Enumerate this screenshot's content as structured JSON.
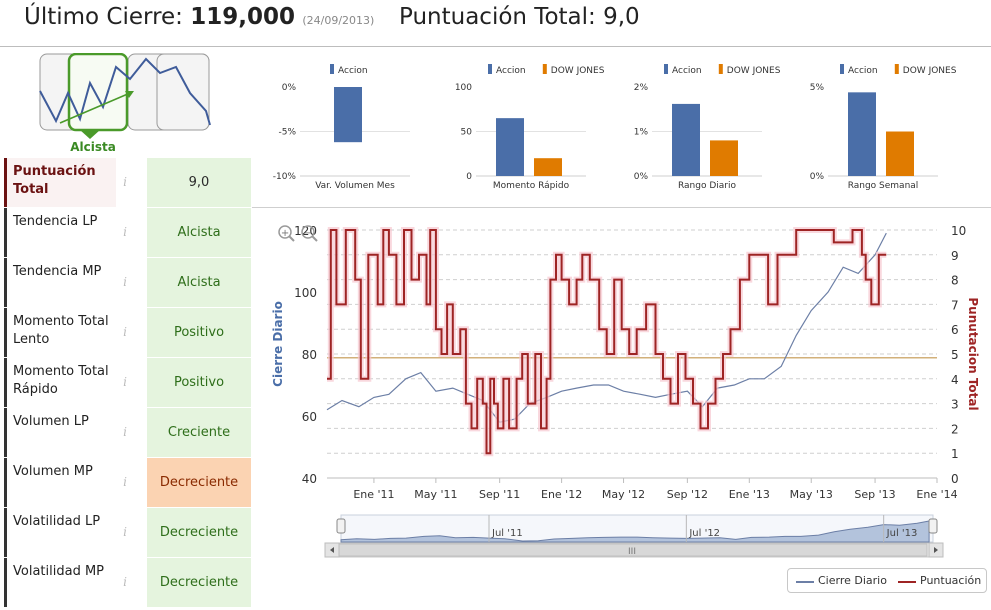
{
  "header": {
    "last_close_label": "Último Cierre:",
    "last_close_value": "119,000",
    "last_close_date": "(24/09/2013)",
    "total_score_label": "Puntuación Total:",
    "total_score_value": "9,0"
  },
  "trend": {
    "label": "Alcista",
    "icon": "trend-up-selector"
  },
  "indicators": [
    {
      "name": "Puntuación Total",
      "value": "9,0"
    },
    {
      "name": "Tendencia LP",
      "value": "Alcista"
    },
    {
      "name": "Tendencia MP",
      "value": "Alcista"
    },
    {
      "name": "Momento Total Lento",
      "value": "Positivo"
    },
    {
      "name": "Momento Total Rápido",
      "value": "Positivo"
    },
    {
      "name": "Volumen LP",
      "value": "Creciente"
    },
    {
      "name": "Volumen MP",
      "value": "Decreciente"
    },
    {
      "name": "Volatilidad LP",
      "value": "Decreciente"
    },
    {
      "name": "Volatilidad MP",
      "value": "Decreciente"
    }
  ],
  "info_glyph": "i",
  "colors": {
    "accion": "#4a6ea8",
    "dow_jones": "#e07b00",
    "cierre_line": "#6c7fa6",
    "puntuacion_line": "#9e2424",
    "average_line": "#d2b07a",
    "positive_bg": "#e5f4de",
    "negative_bg": "#fbd3b2",
    "trend_green": "#3a8a23"
  },
  "chart_data": [
    {
      "type": "bar",
      "xlabel": "Var. Volumen Mes",
      "legend": [
        "Accion"
      ],
      "yticks": [
        "0%",
        "-5%",
        "-10%"
      ],
      "ylim": [
        -10,
        0
      ],
      "series": [
        {
          "name": "Accion",
          "values": [
            -6.2
          ]
        }
      ]
    },
    {
      "type": "bar",
      "xlabel": "Momento Rápido",
      "legend": [
        "Accion",
        "DOW JONES"
      ],
      "yticks": [
        "100",
        "50",
        "0"
      ],
      "ylim": [
        0,
        100
      ],
      "series": [
        {
          "name": "Accion",
          "values": [
            65
          ]
        },
        {
          "name": "DOW JONES",
          "values": [
            20
          ]
        }
      ]
    },
    {
      "type": "bar",
      "xlabel": "Rango Diario",
      "legend": [
        "Accion",
        "DOW JONES"
      ],
      "yticks": [
        "2%",
        "1%",
        "0%"
      ],
      "ylim": [
        0,
        2
      ],
      "series": [
        {
          "name": "Accion",
          "values": [
            1.62
          ]
        },
        {
          "name": "DOW JONES",
          "values": [
            0.8
          ]
        }
      ]
    },
    {
      "type": "bar",
      "xlabel": "Rango Semanal",
      "legend": [
        "Accion",
        "DOW JONES"
      ],
      "yticks": [
        "5%",
        "0%"
      ],
      "ylim": [
        0,
        5
      ],
      "series": [
        {
          "name": "Accion",
          "values": [
            4.7
          ]
        },
        {
          "name": "DOW JONES",
          "values": [
            2.5
          ]
        }
      ]
    },
    {
      "type": "line",
      "ylabel": "Cierre Diario",
      "y2label": "Punutacion Total",
      "ylim": [
        40,
        120
      ],
      "y2lim": [
        0,
        10
      ],
      "yticks": [
        "120",
        "100",
        "80",
        "60",
        "40"
      ],
      "y2ticks": [
        "10",
        "9",
        "8",
        "7",
        "6",
        "5",
        "4",
        "3",
        "2",
        "1",
        "0"
      ],
      "xticks": [
        "Ene '11",
        "May '11",
        "Sep '11",
        "Ene '12",
        "May '12",
        "Sep '12",
        "Ene '13",
        "May '13",
        "Sep '13",
        "Ene '14"
      ],
      "navigator_labels": [
        "Jul '11",
        "Jul '12",
        "Jul '13"
      ],
      "average_y2": 4.85,
      "series": [
        {
          "name": "Cierre Diario",
          "axis": "left",
          "x": [
            2010.75,
            2010.83,
            2010.92,
            2011.0,
            2011.08,
            2011.17,
            2011.25,
            2011.33,
            2011.42,
            2011.5,
            2011.58,
            2011.67,
            2011.75,
            2011.83,
            2011.92,
            2012.0,
            2012.08,
            2012.17,
            2012.25,
            2012.33,
            2012.42,
            2012.5,
            2012.58,
            2012.67,
            2012.75,
            2012.83,
            2012.92,
            2013.0,
            2013.08,
            2013.17,
            2013.25,
            2013.33,
            2013.42,
            2013.5,
            2013.58,
            2013.67,
            2013.73
          ],
          "y": [
            62,
            65,
            63,
            66,
            67,
            72,
            74,
            68,
            69,
            67,
            65,
            58,
            59,
            64,
            66,
            68,
            69,
            70,
            70,
            68,
            67,
            66,
            67,
            68,
            63,
            69,
            70,
            72,
            72,
            76,
            86,
            94,
            100,
            108,
            106,
            112,
            119
          ]
        },
        {
          "name": "Puntuación",
          "axis": "right",
          "x": [
            2010.75,
            2010.77,
            2010.8,
            2010.85,
            2010.9,
            2010.93,
            2010.97,
            2011.02,
            2011.05,
            2011.08,
            2011.12,
            2011.16,
            2011.2,
            2011.24,
            2011.28,
            2011.3,
            2011.33,
            2011.36,
            2011.39,
            2011.42,
            2011.46,
            2011.49,
            2011.52,
            2011.55,
            2011.58,
            2011.6,
            2011.62,
            2011.64,
            2011.66,
            2011.69,
            2011.72,
            2011.76,
            2011.79,
            2011.82,
            2011.86,
            2011.89,
            2011.92,
            2011.94,
            2011.97,
            2012.0,
            2012.04,
            2012.08,
            2012.11,
            2012.15,
            2012.2,
            2012.24,
            2012.28,
            2012.32,
            2012.36,
            2012.4,
            2012.45,
            2012.5,
            2012.54,
            2012.58,
            2012.62,
            2012.66,
            2012.7,
            2012.74,
            2012.78,
            2012.82,
            2012.86,
            2012.9,
            2012.95,
            2013.0,
            2013.05,
            2013.1,
            2013.15,
            2013.2,
            2013.25,
            2013.3,
            2013.35,
            2013.45,
            2013.55,
            2013.6,
            2013.62,
            2013.65,
            2013.69,
            2013.73
          ],
          "y": [
            4,
            10,
            7,
            10,
            8,
            4,
            9,
            7,
            10,
            9,
            7,
            10,
            8,
            9,
            7,
            10,
            6,
            5,
            7,
            5,
            6,
            3,
            2,
            4,
            3,
            1,
            4,
            3,
            2,
            4,
            2,
            4,
            5,
            3,
            5,
            2,
            4,
            8,
            9,
            8,
            7,
            8,
            9,
            8,
            6,
            5,
            8,
            6,
            5,
            6,
            7,
            5,
            4,
            3,
            5,
            4,
            3,
            2,
            3,
            4,
            5,
            6,
            8,
            9,
            9,
            7,
            9,
            9,
            10,
            10,
            10,
            9.5,
            10,
            9,
            8,
            7,
            9,
            9
          ]
        }
      ]
    }
  ],
  "zoom": {
    "in_label": "+",
    "out_label": "−",
    "scroll_grip": "III"
  },
  "legend": {
    "cierre": "Cierre Diario",
    "puntuacion": "Puntuación"
  }
}
